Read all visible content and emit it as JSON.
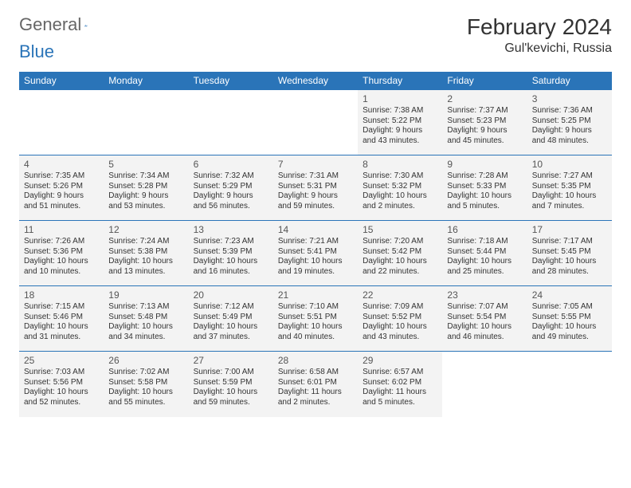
{
  "brand": {
    "first": "General",
    "second": "Blue",
    "accent": "#2a74b8"
  },
  "title": "February 2024",
  "location": "Gul'kevichi, Russia",
  "colors": {
    "header_bg": "#2a74b8",
    "header_text": "#ffffff",
    "cell_bg": "#f3f3f3",
    "rule": "#2a74b8",
    "text": "#333333"
  },
  "day_headers": [
    "Sunday",
    "Monday",
    "Tuesday",
    "Wednesday",
    "Thursday",
    "Friday",
    "Saturday"
  ],
  "weeks": [
    [
      null,
      null,
      null,
      null,
      {
        "n": "1",
        "sr": "Sunrise: 7:38 AM",
        "ss": "Sunset: 5:22 PM",
        "d1": "Daylight: 9 hours",
        "d2": "and 43 minutes."
      },
      {
        "n": "2",
        "sr": "Sunrise: 7:37 AM",
        "ss": "Sunset: 5:23 PM",
        "d1": "Daylight: 9 hours",
        "d2": "and 45 minutes."
      },
      {
        "n": "3",
        "sr": "Sunrise: 7:36 AM",
        "ss": "Sunset: 5:25 PM",
        "d1": "Daylight: 9 hours",
        "d2": "and 48 minutes."
      }
    ],
    [
      {
        "n": "4",
        "sr": "Sunrise: 7:35 AM",
        "ss": "Sunset: 5:26 PM",
        "d1": "Daylight: 9 hours",
        "d2": "and 51 minutes."
      },
      {
        "n": "5",
        "sr": "Sunrise: 7:34 AM",
        "ss": "Sunset: 5:28 PM",
        "d1": "Daylight: 9 hours",
        "d2": "and 53 minutes."
      },
      {
        "n": "6",
        "sr": "Sunrise: 7:32 AM",
        "ss": "Sunset: 5:29 PM",
        "d1": "Daylight: 9 hours",
        "d2": "and 56 minutes."
      },
      {
        "n": "7",
        "sr": "Sunrise: 7:31 AM",
        "ss": "Sunset: 5:31 PM",
        "d1": "Daylight: 9 hours",
        "d2": "and 59 minutes."
      },
      {
        "n": "8",
        "sr": "Sunrise: 7:30 AM",
        "ss": "Sunset: 5:32 PM",
        "d1": "Daylight: 10 hours",
        "d2": "and 2 minutes."
      },
      {
        "n": "9",
        "sr": "Sunrise: 7:28 AM",
        "ss": "Sunset: 5:33 PM",
        "d1": "Daylight: 10 hours",
        "d2": "and 5 minutes."
      },
      {
        "n": "10",
        "sr": "Sunrise: 7:27 AM",
        "ss": "Sunset: 5:35 PM",
        "d1": "Daylight: 10 hours",
        "d2": "and 7 minutes."
      }
    ],
    [
      {
        "n": "11",
        "sr": "Sunrise: 7:26 AM",
        "ss": "Sunset: 5:36 PM",
        "d1": "Daylight: 10 hours",
        "d2": "and 10 minutes."
      },
      {
        "n": "12",
        "sr": "Sunrise: 7:24 AM",
        "ss": "Sunset: 5:38 PM",
        "d1": "Daylight: 10 hours",
        "d2": "and 13 minutes."
      },
      {
        "n": "13",
        "sr": "Sunrise: 7:23 AM",
        "ss": "Sunset: 5:39 PM",
        "d1": "Daylight: 10 hours",
        "d2": "and 16 minutes."
      },
      {
        "n": "14",
        "sr": "Sunrise: 7:21 AM",
        "ss": "Sunset: 5:41 PM",
        "d1": "Daylight: 10 hours",
        "d2": "and 19 minutes."
      },
      {
        "n": "15",
        "sr": "Sunrise: 7:20 AM",
        "ss": "Sunset: 5:42 PM",
        "d1": "Daylight: 10 hours",
        "d2": "and 22 minutes."
      },
      {
        "n": "16",
        "sr": "Sunrise: 7:18 AM",
        "ss": "Sunset: 5:44 PM",
        "d1": "Daylight: 10 hours",
        "d2": "and 25 minutes."
      },
      {
        "n": "17",
        "sr": "Sunrise: 7:17 AM",
        "ss": "Sunset: 5:45 PM",
        "d1": "Daylight: 10 hours",
        "d2": "and 28 minutes."
      }
    ],
    [
      {
        "n": "18",
        "sr": "Sunrise: 7:15 AM",
        "ss": "Sunset: 5:46 PM",
        "d1": "Daylight: 10 hours",
        "d2": "and 31 minutes."
      },
      {
        "n": "19",
        "sr": "Sunrise: 7:13 AM",
        "ss": "Sunset: 5:48 PM",
        "d1": "Daylight: 10 hours",
        "d2": "and 34 minutes."
      },
      {
        "n": "20",
        "sr": "Sunrise: 7:12 AM",
        "ss": "Sunset: 5:49 PM",
        "d1": "Daylight: 10 hours",
        "d2": "and 37 minutes."
      },
      {
        "n": "21",
        "sr": "Sunrise: 7:10 AM",
        "ss": "Sunset: 5:51 PM",
        "d1": "Daylight: 10 hours",
        "d2": "and 40 minutes."
      },
      {
        "n": "22",
        "sr": "Sunrise: 7:09 AM",
        "ss": "Sunset: 5:52 PM",
        "d1": "Daylight: 10 hours",
        "d2": "and 43 minutes."
      },
      {
        "n": "23",
        "sr": "Sunrise: 7:07 AM",
        "ss": "Sunset: 5:54 PM",
        "d1": "Daylight: 10 hours",
        "d2": "and 46 minutes."
      },
      {
        "n": "24",
        "sr": "Sunrise: 7:05 AM",
        "ss": "Sunset: 5:55 PM",
        "d1": "Daylight: 10 hours",
        "d2": "and 49 minutes."
      }
    ],
    [
      {
        "n": "25",
        "sr": "Sunrise: 7:03 AM",
        "ss": "Sunset: 5:56 PM",
        "d1": "Daylight: 10 hours",
        "d2": "and 52 minutes."
      },
      {
        "n": "26",
        "sr": "Sunrise: 7:02 AM",
        "ss": "Sunset: 5:58 PM",
        "d1": "Daylight: 10 hours",
        "d2": "and 55 minutes."
      },
      {
        "n": "27",
        "sr": "Sunrise: 7:00 AM",
        "ss": "Sunset: 5:59 PM",
        "d1": "Daylight: 10 hours",
        "d2": "and 59 minutes."
      },
      {
        "n": "28",
        "sr": "Sunrise: 6:58 AM",
        "ss": "Sunset: 6:01 PM",
        "d1": "Daylight: 11 hours",
        "d2": "and 2 minutes."
      },
      {
        "n": "29",
        "sr": "Sunrise: 6:57 AM",
        "ss": "Sunset: 6:02 PM",
        "d1": "Daylight: 11 hours",
        "d2": "and 5 minutes."
      },
      null,
      null
    ]
  ]
}
